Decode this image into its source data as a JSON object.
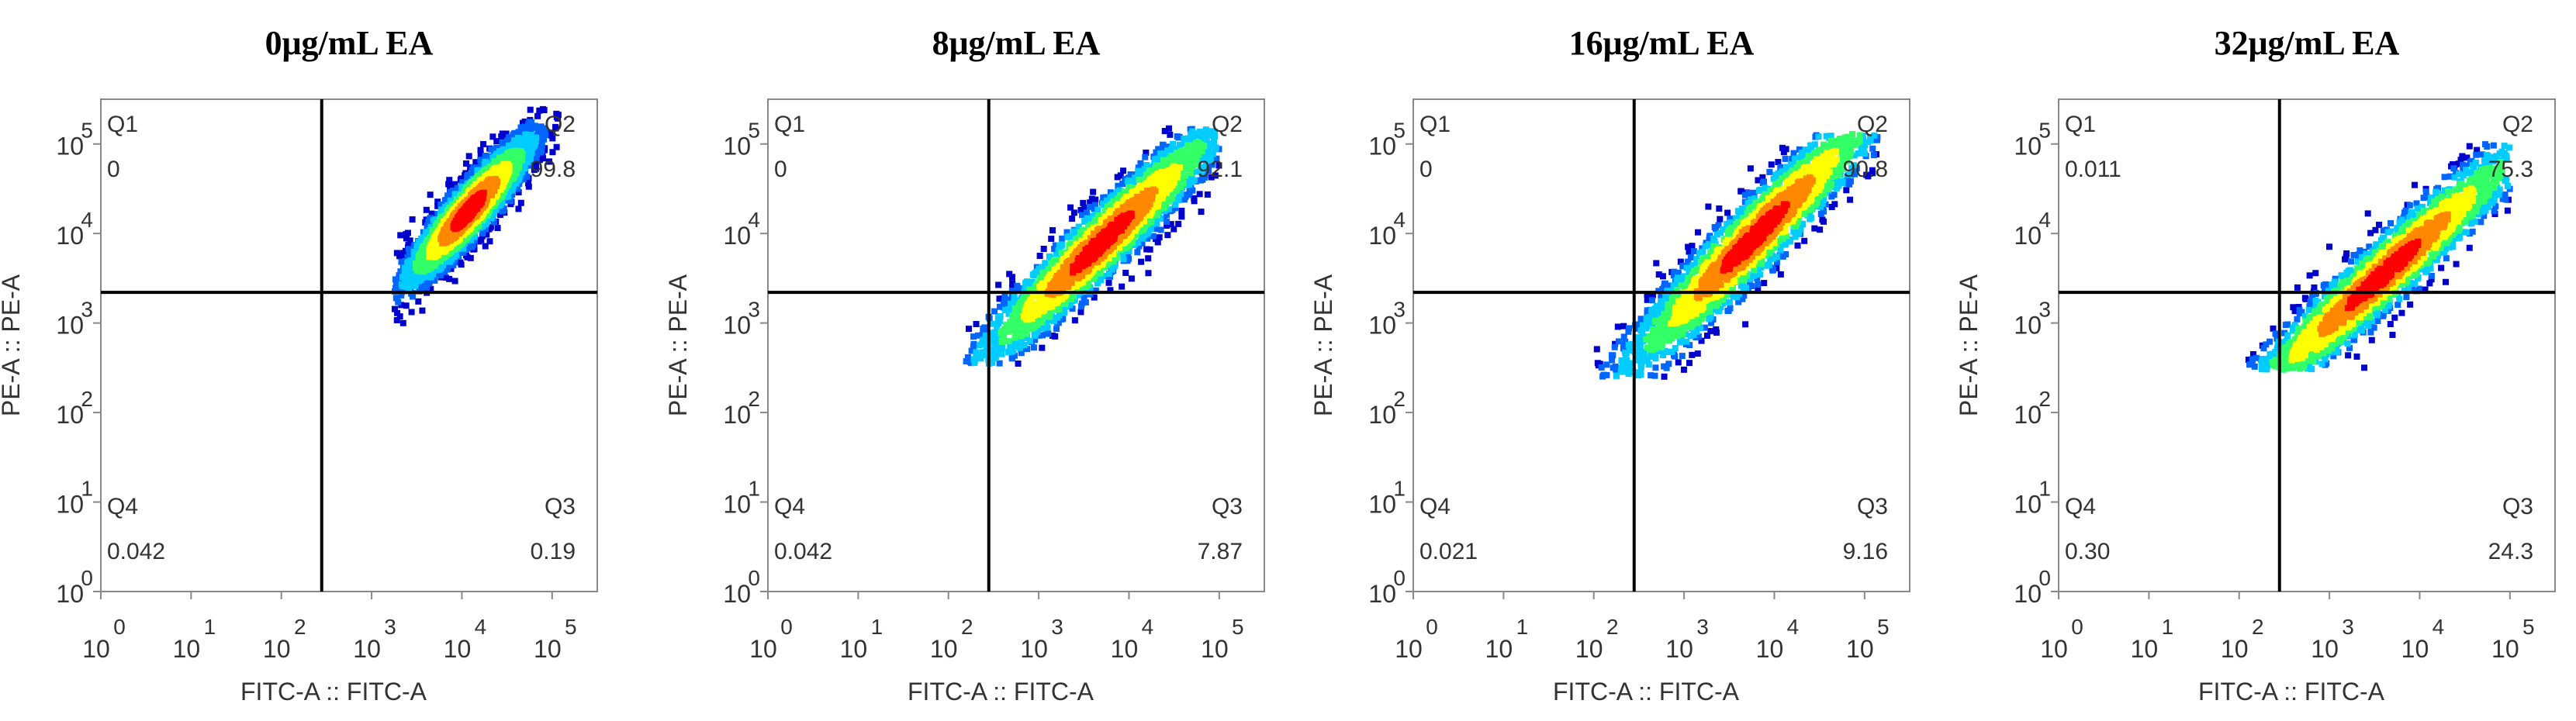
{
  "chart_data": [
    {
      "type": "scatter",
      "title": "0μg/mL EA",
      "xlabel": "FITC-A :: FITC-A",
      "ylabel": "PE-A :: PE-A",
      "xscale": "log",
      "yscale": "log",
      "xlim": [
        1,
        316228
      ],
      "ylim": [
        1,
        316228
      ],
      "ticks": [
        {
          "base": "10",
          "exp": "0"
        },
        {
          "base": "10",
          "exp": "1"
        },
        {
          "base": "10",
          "exp": "2"
        },
        {
          "base": "10",
          "exp": "3"
        },
        {
          "base": "10",
          "exp": "4"
        },
        {
          "base": "10",
          "exp": "5"
        }
      ],
      "gate": {
        "x": 280,
        "y": 2200
      },
      "quadrants": [
        {
          "name": "Q1",
          "value": "0"
        },
        {
          "name": "Q2",
          "value": "99.8"
        },
        {
          "name": "Q3",
          "value": "0.19"
        },
        {
          "name": "Q4",
          "value": "0.042"
        }
      ],
      "population": {
        "center": [
          12000,
          18000
        ],
        "spread_x": 0.22,
        "spread_y": 0.32,
        "tilt": 1.05,
        "min_corner": [
          1800,
          600
        ],
        "max_corner": [
          120000,
          250000
        ]
      },
      "density_colors": [
        "#0000cc",
        "#0066ff",
        "#00ccff",
        "#33ff66",
        "#ffff00",
        "#ff8800",
        "#ff0000"
      ]
    },
    {
      "type": "scatter",
      "title": "8μg/mL EA",
      "xlabel": "FITC-A :: FITC-A",
      "ylabel": "PE-A :: PE-A",
      "xscale": "log",
      "yscale": "log",
      "xlim": [
        1,
        316228
      ],
      "ylim": [
        1,
        316228
      ],
      "ticks": [
        {
          "base": "10",
          "exp": "0"
        },
        {
          "base": "10",
          "exp": "1"
        },
        {
          "base": "10",
          "exp": "2"
        },
        {
          "base": "10",
          "exp": "3"
        },
        {
          "base": "10",
          "exp": "4"
        },
        {
          "base": "10",
          "exp": "5"
        }
      ],
      "gate": {
        "x": 280,
        "y": 2200
      },
      "quadrants": [
        {
          "name": "Q1",
          "value": "0"
        },
        {
          "name": "Q2",
          "value": "92.1"
        },
        {
          "name": "Q3",
          "value": "7.87"
        },
        {
          "name": "Q4",
          "value": "0.042"
        }
      ],
      "population": {
        "center": [
          5000,
          8000
        ],
        "spread_x": 0.42,
        "spread_y": 0.38,
        "tilt": 0.95,
        "min_corner": [
          150,
          350
        ],
        "max_corner": [
          100000,
          150000
        ]
      },
      "density_colors": [
        "#0000cc",
        "#0066ff",
        "#00ccff",
        "#33ff66",
        "#ffff00",
        "#ff8800",
        "#ff0000"
      ]
    },
    {
      "type": "scatter",
      "title": "16μg/mL EA",
      "xlabel": "FITC-A :: FITC-A",
      "ylabel": "PE-A :: PE-A",
      "xscale": "log",
      "yscale": "log",
      "xlim": [
        1,
        316228
      ],
      "ylim": [
        1,
        316228
      ],
      "ticks": [
        {
          "base": "10",
          "exp": "0"
        },
        {
          "base": "10",
          "exp": "1"
        },
        {
          "base": "10",
          "exp": "2"
        },
        {
          "base": "10",
          "exp": "3"
        },
        {
          "base": "10",
          "exp": "4"
        },
        {
          "base": "10",
          "exp": "5"
        }
      ],
      "gate": {
        "x": 280,
        "y": 2200
      },
      "quadrants": [
        {
          "name": "Q1",
          "value": "0"
        },
        {
          "name": "Q2",
          "value": "90.8"
        },
        {
          "name": "Q3",
          "value": "9.16"
        },
        {
          "name": "Q4",
          "value": "0.021"
        }
      ],
      "population": {
        "center": [
          6000,
          9000
        ],
        "spread_x": 0.45,
        "spread_y": 0.42,
        "tilt": 1.0,
        "min_corner": [
          100,
          250
        ],
        "max_corner": [
          150000,
          130000
        ]
      },
      "density_colors": [
        "#0000cc",
        "#0066ff",
        "#00ccff",
        "#33ff66",
        "#ffff00",
        "#ff8800",
        "#ff0000"
      ]
    },
    {
      "type": "scatter",
      "title": "32μg/mL EA",
      "xlabel": "FITC-A :: FITC-A",
      "ylabel": "PE-A :: PE-A",
      "xscale": "log",
      "yscale": "log",
      "xlim": [
        1,
        316228
      ],
      "ylim": [
        1,
        316228
      ],
      "ticks": [
        {
          "base": "10",
          "exp": "0"
        },
        {
          "base": "10",
          "exp": "1"
        },
        {
          "base": "10",
          "exp": "2"
        },
        {
          "base": "10",
          "exp": "3"
        },
        {
          "base": "10",
          "exp": "4"
        },
        {
          "base": "10",
          "exp": "5"
        }
      ],
      "gate": {
        "x": 280,
        "y": 2200
      },
      "quadrants": [
        {
          "name": "Q1",
          "value": "0.011"
        },
        {
          "name": "Q2",
          "value": "75.3"
        },
        {
          "name": "Q3",
          "value": "24.3"
        },
        {
          "name": "Q4",
          "value": "0.30"
        }
      ],
      "population": {
        "center": [
          4000,
          3500
        ],
        "spread_x": 0.5,
        "spread_y": 0.38,
        "tilt": 0.9,
        "min_corner": [
          80,
          300
        ],
        "max_corner": [
          100000,
          100000
        ]
      },
      "density_colors": [
        "#0000cc",
        "#0066ff",
        "#00ccff",
        "#33ff66",
        "#ffff00",
        "#ff8800",
        "#ff0000"
      ]
    }
  ]
}
